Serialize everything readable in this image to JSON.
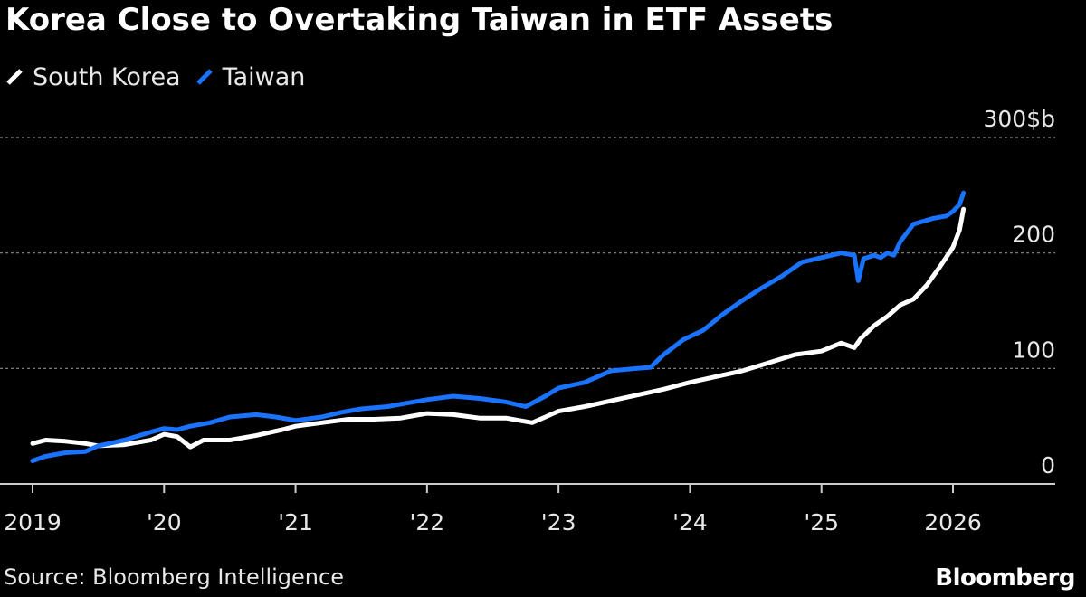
{
  "chart_data": {
    "type": "line",
    "title": "Korea Close to Overtaking Taiwan in ETF Assets",
    "xlabel": "",
    "ylabel": "",
    "x_ticks": [
      "2019",
      "'20",
      "'21",
      "'22",
      "'23",
      "'24",
      "'25",
      "2026"
    ],
    "xlim": [
      2019,
      2026.6
    ],
    "ylim": [
      0,
      300
    ],
    "y_ticks": [
      {
        "value": 0,
        "label": "0"
      },
      {
        "value": 100,
        "label": "100"
      },
      {
        "value": 200,
        "label": "200"
      },
      {
        "value": 300,
        "label": "300$b"
      }
    ],
    "grid": true,
    "legend_position": "top-left",
    "series": [
      {
        "name": "South Korea",
        "color": "#ffffff",
        "points": [
          [
            2019.0,
            35
          ],
          [
            2019.1,
            38
          ],
          [
            2019.25,
            37
          ],
          [
            2019.4,
            35
          ],
          [
            2019.5,
            33
          ],
          [
            2019.7,
            34
          ],
          [
            2019.9,
            38
          ],
          [
            2020.0,
            43
          ],
          [
            2020.1,
            41
          ],
          [
            2020.2,
            32
          ],
          [
            2020.3,
            38
          ],
          [
            2020.5,
            38
          ],
          [
            2020.7,
            42
          ],
          [
            2020.9,
            47
          ],
          [
            2021.0,
            50
          ],
          [
            2021.2,
            53
          ],
          [
            2021.4,
            56
          ],
          [
            2021.6,
            56
          ],
          [
            2021.8,
            57
          ],
          [
            2022.0,
            61
          ],
          [
            2022.2,
            60
          ],
          [
            2022.4,
            57
          ],
          [
            2022.6,
            57
          ],
          [
            2022.8,
            53
          ],
          [
            2022.9,
            58
          ],
          [
            2023.0,
            63
          ],
          [
            2023.2,
            67
          ],
          [
            2023.4,
            72
          ],
          [
            2023.6,
            77
          ],
          [
            2023.8,
            82
          ],
          [
            2024.0,
            88
          ],
          [
            2024.2,
            93
          ],
          [
            2024.4,
            98
          ],
          [
            2024.6,
            105
          ],
          [
            2024.8,
            112
          ],
          [
            2025.0,
            115
          ],
          [
            2025.15,
            122
          ],
          [
            2025.25,
            118
          ],
          [
            2025.3,
            126
          ],
          [
            2025.4,
            137
          ],
          [
            2025.5,
            145
          ],
          [
            2025.6,
            155
          ],
          [
            2025.7,
            160
          ],
          [
            2025.8,
            172
          ],
          [
            2025.9,
            188
          ],
          [
            2026.0,
            205
          ],
          [
            2026.05,
            220
          ],
          [
            2026.08,
            238
          ]
        ]
      },
      {
        "name": "Taiwan",
        "color": "#1a73ff",
        "points": [
          [
            2019.0,
            20
          ],
          [
            2019.1,
            24
          ],
          [
            2019.25,
            27
          ],
          [
            2019.4,
            28
          ],
          [
            2019.5,
            33
          ],
          [
            2019.7,
            38
          ],
          [
            2019.9,
            45
          ],
          [
            2020.0,
            48
          ],
          [
            2020.1,
            47
          ],
          [
            2020.2,
            50
          ],
          [
            2020.35,
            53
          ],
          [
            2020.5,
            58
          ],
          [
            2020.7,
            60
          ],
          [
            2020.85,
            58
          ],
          [
            2021.0,
            55
          ],
          [
            2021.2,
            58
          ],
          [
            2021.35,
            62
          ],
          [
            2021.5,
            65
          ],
          [
            2021.7,
            67
          ],
          [
            2021.85,
            70
          ],
          [
            2022.0,
            73
          ],
          [
            2022.2,
            76
          ],
          [
            2022.4,
            74
          ],
          [
            2022.6,
            71
          ],
          [
            2022.75,
            67
          ],
          [
            2022.9,
            76
          ],
          [
            2023.0,
            83
          ],
          [
            2023.2,
            88
          ],
          [
            2023.4,
            98
          ],
          [
            2023.6,
            100
          ],
          [
            2023.7,
            101
          ],
          [
            2023.8,
            112
          ],
          [
            2023.95,
            125
          ],
          [
            2024.1,
            133
          ],
          [
            2024.25,
            147
          ],
          [
            2024.4,
            159
          ],
          [
            2024.55,
            170
          ],
          [
            2024.7,
            180
          ],
          [
            2024.85,
            192
          ],
          [
            2025.0,
            196
          ],
          [
            2025.15,
            200
          ],
          [
            2025.25,
            198
          ],
          [
            2025.28,
            176
          ],
          [
            2025.32,
            195
          ],
          [
            2025.4,
            198
          ],
          [
            2025.45,
            196
          ],
          [
            2025.5,
            200
          ],
          [
            2025.55,
            198
          ],
          [
            2025.6,
            210
          ],
          [
            2025.7,
            225
          ],
          [
            2025.85,
            230
          ],
          [
            2025.95,
            232
          ],
          [
            2026.0,
            236
          ],
          [
            2026.05,
            242
          ],
          [
            2026.08,
            252
          ]
        ]
      }
    ]
  },
  "footer": {
    "source": "Source: Bloomberg Intelligence",
    "logo": "Bloomberg"
  }
}
